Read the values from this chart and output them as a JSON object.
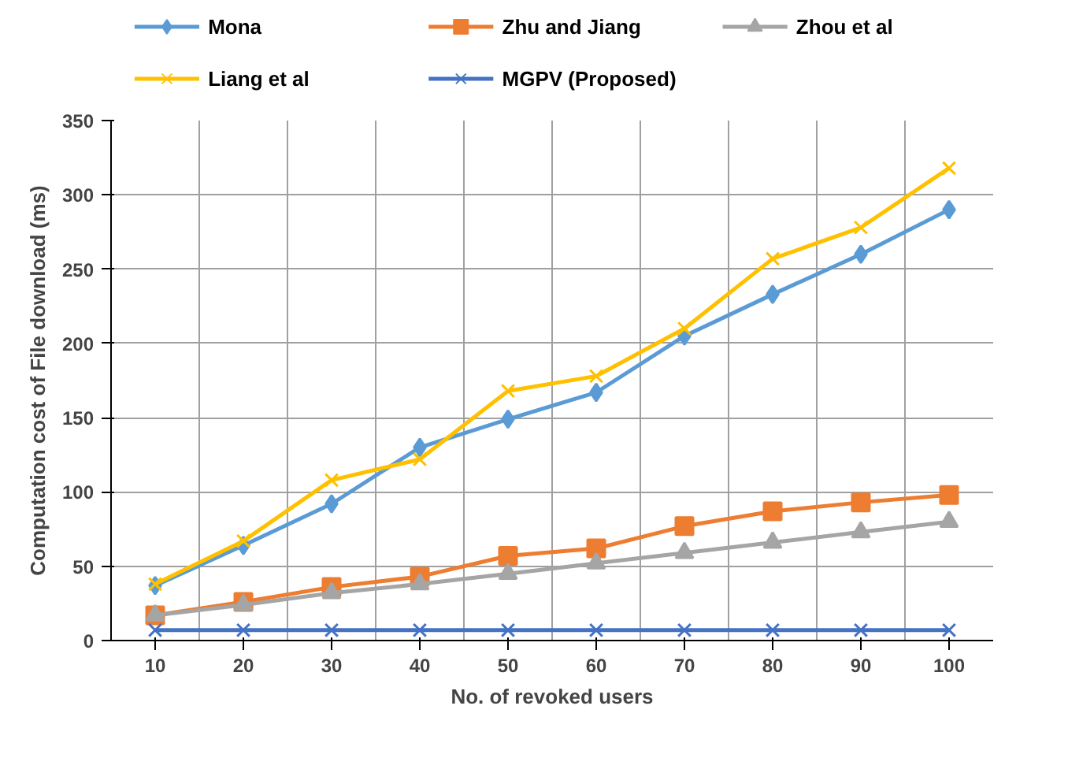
{
  "chart_data": {
    "type": "line",
    "xlabel": "No. of revoked users",
    "ylabel": "Computation cost of File download (ms)",
    "categories": [
      "10",
      "20",
      "30",
      "40",
      "50",
      "60",
      "70",
      "80",
      "90",
      "100"
    ],
    "series": [
      {
        "name": "Mona",
        "color": "#5b9bd5",
        "marker": "diamond",
        "values": [
          37,
          64,
          92,
          130,
          149,
          167,
          205,
          233,
          260,
          290
        ]
      },
      {
        "name": "Zhu and Jiang",
        "color": "#ed7d31",
        "marker": "square",
        "values": [
          17,
          26,
          36,
          43,
          57,
          62,
          77,
          87,
          93,
          98
        ]
      },
      {
        "name": "Zhou et al",
        "color": "#a5a5a5",
        "marker": "triangle",
        "values": [
          17,
          24,
          32,
          38,
          45,
          52,
          59,
          66,
          73,
          80
        ]
      },
      {
        "name": "Liang et al",
        "color": "#ffc000",
        "marker": "cross",
        "values": [
          38,
          67,
          108,
          122,
          168,
          178,
          210,
          257,
          278,
          318
        ]
      },
      {
        "name": "MGPV (Proposed)",
        "color": "#4472c4",
        "marker": "cross",
        "values": [
          7,
          7,
          7,
          7,
          7,
          7,
          7,
          7,
          7,
          7
        ]
      }
    ],
    "ylim": [
      0,
      350
    ],
    "yticks": [
      0,
      50,
      100,
      150,
      200,
      250,
      300,
      350
    ],
    "grid": true,
    "legend": "top"
  }
}
